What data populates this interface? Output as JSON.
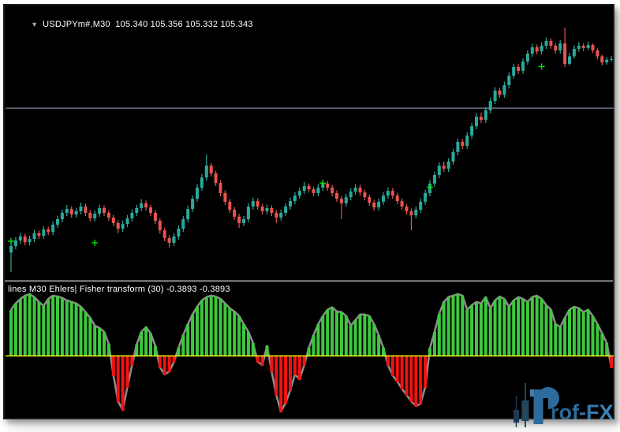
{
  "window": {
    "symbol_label": "USDJPYm#,M30",
    "ohlc_label": "105.340 105.356 105.332 105.343",
    "dropdown_glyph": "▼"
  },
  "indicator": {
    "label": "lines M30 Ehlers| Fisher transform (30) -0.3893 -0.3893",
    "name": "Ehlers Fisher transform",
    "period": 30,
    "last_values": [
      -0.3893,
      -0.3893
    ]
  },
  "watermark": {
    "text": "rof-FX",
    "brand": "Prof-FX"
  },
  "colors": {
    "panel_bg": "#000000",
    "frame_border": "#1b1b1b",
    "text": "#ffffff",
    "grid_line": "#9aa6b8",
    "candle_up": "#2ba99c",
    "candle_down": "#e9544e",
    "histogram_up": "#3dc93d",
    "histogram_down": "#f31212",
    "zero_line": "#f5f500",
    "envelope_line": "#8c8c8c",
    "marker": "#00e400",
    "watermark_blue": "#2f74a6",
    "watermark_dark": "#21445e"
  },
  "chart_data": [
    {
      "type": "candlestick",
      "symbol": "USDJPYm#",
      "timeframe": "M30",
      "title": "USDJPYm#,M30",
      "grid": "single horizontal line",
      "gridline_price": 105.127,
      "price_top": 105.52,
      "price_bottom": 104.38,
      "ohlc": [
        [
          104.49,
          104.535,
          104.404,
          104.519
        ],
        [
          104.519,
          104.558,
          104.505,
          104.543
        ],
        [
          104.543,
          104.576,
          104.529,
          104.561
        ],
        [
          104.561,
          104.573,
          104.521,
          104.536
        ],
        [
          104.536,
          104.565,
          104.522,
          104.55
        ],
        [
          104.55,
          104.59,
          104.536,
          104.575
        ],
        [
          104.575,
          104.587,
          104.55,
          104.564
        ],
        [
          104.564,
          104.607,
          104.55,
          104.592
        ],
        [
          104.592,
          104.604,
          104.567,
          104.581
        ],
        [
          104.581,
          104.628,
          104.567,
          104.613
        ],
        [
          104.613,
          104.652,
          104.599,
          104.637
        ],
        [
          104.637,
          104.68,
          104.623,
          104.665
        ],
        [
          104.665,
          104.7,
          104.651,
          104.682
        ],
        [
          104.682,
          104.694,
          104.644,
          104.658
        ],
        [
          104.658,
          104.687,
          104.644,
          104.672
        ],
        [
          104.672,
          104.71,
          104.658,
          104.693
        ],
        [
          104.693,
          104.705,
          104.651,
          104.665
        ],
        [
          104.665,
          104.677,
          104.627,
          104.641
        ],
        [
          104.641,
          104.676,
          104.627,
          104.661
        ],
        [
          104.661,
          104.701,
          104.647,
          104.686
        ],
        [
          104.686,
          104.698,
          104.651,
          104.665
        ],
        [
          104.665,
          104.677,
          104.63,
          104.644
        ],
        [
          104.644,
          104.656,
          104.606,
          104.62
        ],
        [
          104.62,
          104.632,
          104.576,
          104.595
        ],
        [
          104.595,
          104.631,
          104.581,
          104.616
        ],
        [
          104.616,
          104.656,
          104.602,
          104.641
        ],
        [
          104.641,
          104.68,
          104.627,
          104.665
        ],
        [
          104.665,
          104.701,
          104.651,
          104.686
        ],
        [
          104.686,
          104.725,
          104.672,
          104.707
        ],
        [
          104.707,
          104.719,
          104.675,
          104.689
        ],
        [
          104.689,
          104.701,
          104.651,
          104.665
        ],
        [
          104.665,
          104.677,
          104.616,
          104.63
        ],
        [
          104.63,
          104.642,
          104.574,
          104.588
        ],
        [
          104.588,
          104.6,
          104.54,
          104.554
        ],
        [
          104.554,
          104.566,
          104.512,
          104.533
        ],
        [
          104.533,
          104.576,
          104.519,
          104.561
        ],
        [
          104.561,
          104.61,
          104.547,
          104.595
        ],
        [
          104.595,
          104.652,
          104.581,
          104.637
        ],
        [
          104.637,
          104.697,
          104.623,
          104.682
        ],
        [
          104.682,
          104.742,
          104.668,
          104.727
        ],
        [
          104.727,
          104.791,
          104.713,
          104.776
        ],
        [
          104.776,
          104.836,
          104.762,
          104.821
        ],
        [
          104.821,
          104.922,
          104.807,
          104.873
        ],
        [
          104.873,
          104.885,
          104.825,
          104.839
        ],
        [
          104.839,
          104.851,
          104.783,
          104.797
        ],
        [
          104.797,
          104.809,
          104.738,
          104.752
        ],
        [
          104.752,
          104.764,
          104.7,
          104.714
        ],
        [
          104.714,
          104.726,
          104.665,
          104.679
        ],
        [
          104.679,
          104.691,
          104.634,
          104.648
        ],
        [
          104.648,
          104.66,
          104.599,
          104.62
        ],
        [
          104.62,
          104.652,
          104.606,
          104.637
        ],
        [
          104.637,
          104.708,
          104.623,
          104.693
        ],
        [
          104.693,
          104.732,
          104.679,
          104.717
        ],
        [
          104.717,
          104.729,
          104.679,
          104.693
        ],
        [
          104.693,
          104.705,
          104.658,
          104.672
        ],
        [
          104.672,
          104.701,
          104.658,
          104.686
        ],
        [
          104.686,
          104.698,
          104.651,
          104.665
        ],
        [
          104.665,
          104.677,
          104.62,
          104.644
        ],
        [
          104.644,
          104.68,
          104.63,
          104.665
        ],
        [
          104.665,
          104.708,
          104.651,
          104.693
        ],
        [
          104.693,
          104.732,
          104.679,
          104.717
        ],
        [
          104.717,
          104.756,
          104.703,
          104.741
        ],
        [
          104.741,
          104.777,
          104.727,
          104.762
        ],
        [
          104.762,
          104.801,
          104.748,
          104.783
        ],
        [
          104.783,
          104.795,
          104.755,
          104.769
        ],
        [
          104.769,
          104.781,
          104.738,
          104.752
        ],
        [
          104.752,
          104.791,
          104.738,
          104.776
        ],
        [
          104.776,
          104.812,
          104.762,
          104.794
        ],
        [
          104.794,
          104.806,
          104.762,
          104.776
        ],
        [
          104.776,
          104.788,
          104.738,
          104.752
        ],
        [
          104.752,
          104.764,
          104.713,
          104.727
        ],
        [
          104.727,
          104.739,
          104.637,
          104.707
        ],
        [
          104.707,
          104.749,
          104.693,
          104.734
        ],
        [
          104.734,
          104.774,
          104.72,
          104.759
        ],
        [
          104.759,
          104.791,
          104.745,
          104.776
        ],
        [
          104.776,
          104.788,
          104.741,
          104.755
        ],
        [
          104.755,
          104.767,
          104.72,
          104.734
        ],
        [
          104.734,
          104.746,
          104.696,
          104.71
        ],
        [
          104.71,
          104.722,
          104.675,
          104.689
        ],
        [
          104.689,
          104.729,
          104.675,
          104.714
        ],
        [
          104.714,
          104.756,
          104.7,
          104.741
        ],
        [
          104.741,
          104.777,
          104.727,
          104.762
        ],
        [
          104.762,
          104.774,
          104.727,
          104.741
        ],
        [
          104.741,
          104.753,
          104.703,
          104.717
        ],
        [
          104.717,
          104.729,
          104.679,
          104.693
        ],
        [
          104.693,
          104.705,
          104.658,
          104.672
        ],
        [
          104.672,
          104.684,
          104.588,
          104.654
        ],
        [
          104.654,
          104.694,
          104.64,
          104.679
        ],
        [
          104.679,
          104.729,
          104.665,
          104.714
        ],
        [
          104.714,
          104.767,
          104.7,
          104.752
        ],
        [
          104.752,
          104.809,
          104.738,
          104.794
        ],
        [
          104.794,
          104.847,
          104.78,
          104.832
        ],
        [
          104.832,
          104.888,
          104.818,
          104.873
        ],
        [
          104.873,
          104.891,
          104.846,
          104.86
        ],
        [
          104.86,
          104.906,
          104.846,
          104.891
        ],
        [
          104.891,
          104.948,
          104.877,
          104.933
        ],
        [
          104.933,
          104.993,
          104.919,
          104.978
        ],
        [
          104.978,
          104.99,
          104.946,
          104.96
        ],
        [
          104.96,
          105.021,
          104.946,
          105.006
        ],
        [
          105.006,
          105.062,
          104.992,
          105.047
        ],
        [
          105.047,
          105.104,
          105.033,
          105.089
        ],
        [
          105.089,
          105.107,
          105.061,
          105.075
        ],
        [
          105.075,
          105.132,
          105.061,
          105.117
        ],
        [
          105.117,
          105.173,
          105.103,
          105.158
        ],
        [
          105.158,
          105.219,
          105.144,
          105.204
        ],
        [
          105.204,
          105.216,
          105.172,
          105.186
        ],
        [
          105.186,
          105.243,
          105.172,
          105.228
        ],
        [
          105.228,
          105.285,
          105.214,
          105.27
        ],
        [
          105.27,
          105.323,
          105.256,
          105.308
        ],
        [
          105.308,
          105.321,
          105.277,
          105.291
        ],
        [
          105.291,
          105.347,
          105.277,
          105.332
        ],
        [
          105.332,
          105.382,
          105.318,
          105.367
        ],
        [
          105.367,
          105.41,
          105.353,
          105.395
        ],
        [
          105.395,
          105.407,
          105.363,
          105.377
        ],
        [
          105.377,
          105.417,
          105.363,
          105.402
        ],
        [
          105.402,
          105.438,
          105.388,
          105.423
        ],
        [
          105.423,
          105.434,
          105.388,
          105.402
        ],
        [
          105.402,
          105.413,
          105.367,
          105.381
        ],
        [
          105.381,
          105.427,
          105.367,
          105.412
        ],
        [
          105.412,
          105.482,
          105.308,
          105.322
        ],
        [
          105.322,
          105.37,
          105.315,
          105.355
        ],
        [
          105.355,
          105.403,
          105.345,
          105.388
        ],
        [
          105.388,
          105.418,
          105.375,
          105.402
        ],
        [
          105.402,
          105.412,
          105.378,
          105.392
        ],
        [
          105.392,
          105.42,
          105.382,
          105.405
        ],
        [
          105.405,
          105.412,
          105.37,
          105.382
        ],
        [
          105.382,
          105.39,
          105.342,
          105.355
        ],
        [
          105.355,
          105.362,
          105.315,
          105.328
        ],
        [
          105.328,
          105.352,
          105.318,
          105.34
        ],
        [
          105.34,
          105.356,
          105.332,
          105.343
        ]
      ],
      "markers": [
        {
          "bar": 0,
          "price": 104.54
        },
        {
          "bar": 18,
          "price": 104.533
        },
        {
          "bar": 67,
          "price": 104.796
        },
        {
          "bar": 90,
          "price": 104.778
        },
        {
          "bar": 114,
          "price": 105.31
        }
      ]
    },
    {
      "type": "bar",
      "name": "Ehlers Fisher transform (30)",
      "ylabel": "Fisher value",
      "zero_line": 0,
      "ylim": [
        -2.3,
        2.5
      ],
      "values": [
        1.53,
        1.74,
        1.89,
        2.0,
        2.05,
        1.95,
        1.79,
        1.66,
        1.89,
        2.0,
        1.97,
        1.92,
        1.84,
        1.79,
        1.74,
        1.63,
        1.45,
        1.26,
        1.0,
        0.92,
        0.79,
        0.39,
        -0.66,
        -1.53,
        -1.82,
        -1.05,
        -0.32,
        0.37,
        0.79,
        0.95,
        0.74,
        0.32,
        -0.39,
        -0.63,
        -0.53,
        -0.21,
        0.26,
        0.68,
        1.05,
        1.37,
        1.63,
        1.84,
        1.95,
        2.0,
        1.97,
        1.89,
        1.74,
        1.58,
        1.47,
        1.32,
        1.05,
        0.79,
        0.42,
        -0.21,
        -0.32,
        0.32,
        -0.53,
        -1.32,
        -1.87,
        -1.58,
        -1.16,
        -0.63,
        -0.79,
        -0.32,
        0.26,
        0.68,
        1.05,
        1.32,
        1.53,
        1.61,
        1.47,
        1.45,
        1.32,
        1.0,
        1.18,
        1.37,
        1.37,
        1.32,
        1.05,
        0.68,
        0.26,
        -0.32,
        -0.66,
        -0.87,
        -1.11,
        -1.32,
        -1.53,
        -1.68,
        -1.61,
        -1.05,
        0.24,
        0.79,
        1.39,
        1.79,
        1.95,
        2.0,
        2.05,
        2.0,
        1.53,
        1.68,
        1.79,
        1.74,
        1.95,
        1.58,
        1.84,
        1.97,
        1.89,
        1.63,
        1.84,
        1.95,
        1.89,
        1.79,
        1.95,
        2.0,
        1.89,
        1.68,
        1.53,
        1.05,
        0.95,
        1.26,
        1.53,
        1.63,
        1.58,
        1.45,
        1.53,
        1.32,
        1.05,
        0.74,
        0.42,
        -0.39
      ]
    }
  ]
}
